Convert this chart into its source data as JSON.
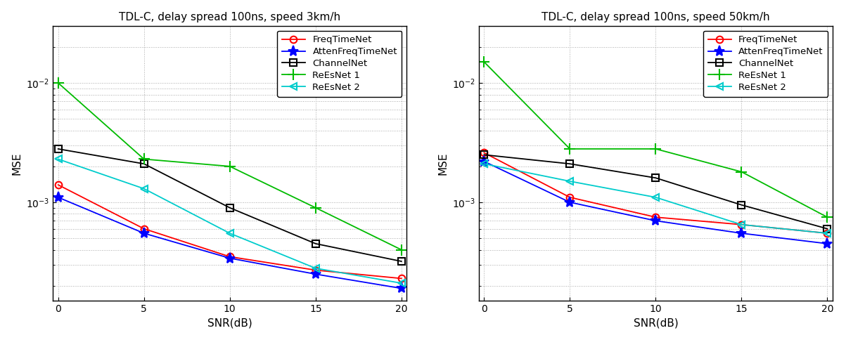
{
  "snr": [
    0,
    5,
    10,
    15,
    20
  ],
  "plot1": {
    "title": "TDL-C, delay spread 100ns, speed 3km/h",
    "FreqTimeNet": [
      0.0014,
      0.0006,
      0.00035,
      0.00027,
      0.00023
    ],
    "AttenFreqTimeNet": [
      0.0011,
      0.00055,
      0.00034,
      0.00025,
      0.00019
    ],
    "ChannelNet": [
      0.0028,
      0.0021,
      0.0009,
      0.00045,
      0.00032
    ],
    "ReEsNet1": [
      0.01,
      0.0023,
      0.002,
      0.0009,
      0.0004
    ],
    "ReEsNet2": [
      0.0023,
      0.0013,
      0.00055,
      0.00028,
      0.00021
    ]
  },
  "plot2": {
    "title": "TDL-C, delay spread 100ns, speed 50km/h",
    "FreqTimeNet": [
      0.0026,
      0.0011,
      0.00075,
      0.00065,
      0.00055
    ],
    "AttenFreqTimeNet": [
      0.0022,
      0.001,
      0.0007,
      0.00055,
      0.00045
    ],
    "ChannelNet": [
      0.0025,
      0.0021,
      0.0016,
      0.00095,
      0.0006
    ],
    "ReEsNet1": [
      0.015,
      0.0028,
      0.0028,
      0.0018,
      0.00075
    ],
    "ReEsNet2": [
      0.0021,
      0.0015,
      0.0011,
      0.00065,
      0.00055
    ]
  },
  "colors": {
    "FreqTimeNet": "#ff0000",
    "AttenFreqTimeNet": "#0000ff",
    "ChannelNet": "#000000",
    "ReEsNet1": "#00bb00",
    "ReEsNet2": "#00cccc"
  },
  "markers": {
    "FreqTimeNet": "o",
    "AttenFreqTimeNet": "*",
    "ChannelNet": "s",
    "ReEsNet1": "+",
    "ReEsNet2": "<"
  },
  "markersizes": {
    "FreqTimeNet": 7,
    "AttenFreqTimeNet": 11,
    "ChannelNet": 7,
    "ReEsNet1": 11,
    "ReEsNet2": 7
  },
  "xlabel": "SNR(dB)",
  "ylabel": "MSE",
  "ylim": [
    0.00015,
    0.03
  ],
  "xlim": [
    -0.3,
    20.3
  ],
  "xticks": [
    0,
    5,
    10,
    15,
    20
  ],
  "legend_labels": [
    "FreqTimeNet",
    "AttenFreqTimeNet",
    "ChannelNet",
    "ReEsNet 1",
    "ReEsNet 2"
  ],
  "legend_keys": [
    "FreqTimeNet",
    "AttenFreqTimeNet",
    "ChannelNet",
    "ReEsNet1",
    "ReEsNet2"
  ],
  "background_color": "#ffffff",
  "grid_color": "#aaaaaa"
}
